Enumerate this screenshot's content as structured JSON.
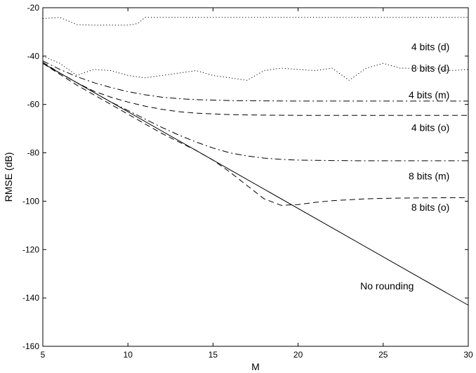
{
  "chart_data": {
    "type": "line",
    "title": "",
    "xlabel": "M",
    "ylabel": "RMSE (dB)",
    "xlim": [
      5,
      30
    ],
    "ylim": [
      -160,
      -20
    ],
    "xticks": [
      5,
      10,
      15,
      20,
      25,
      30
    ],
    "yticks": [
      -160,
      -140,
      -120,
      -100,
      -80,
      -60,
      -40,
      -20
    ],
    "grid": false,
    "legend": "none",
    "series": [
      {
        "name": "No rounding",
        "style": "solid",
        "x": [
          5,
          30
        ],
        "y": [
          -43,
          -143
        ],
        "label_at": [
          26.8,
          -136.5
        ]
      },
      {
        "name": "4 bits (d)",
        "style": "dotted",
        "x": [
          5,
          6,
          7,
          8,
          9,
          10,
          10.6,
          11,
          12,
          14,
          16,
          18,
          20,
          22,
          24,
          26,
          28,
          30
        ],
        "y": [
          -24.5,
          -24,
          -27,
          -27.2,
          -27.2,
          -27.2,
          -26.5,
          -24,
          -24,
          -24,
          -24,
          -24,
          -24,
          -24,
          -24,
          -24,
          -24,
          -24
        ],
        "label_at": [
          28.9,
          -37.5
        ]
      },
      {
        "name": "8 bits (d)",
        "style": "dotted",
        "x": [
          5,
          6,
          7,
          8,
          9,
          10,
          11,
          12,
          13,
          14,
          15,
          16,
          17,
          18,
          19,
          20,
          21,
          22,
          23,
          24,
          25,
          26,
          27,
          28,
          29,
          30
        ],
        "y": [
          -40,
          -43,
          -48,
          -45.5,
          -46,
          -48,
          -49,
          -48,
          -47,
          -46,
          -48,
          -49,
          -50,
          -46,
          -45,
          -45.5,
          -46,
          -45,
          -50,
          -45,
          -43,
          -45,
          -45,
          -45,
          -46,
          -45.5
        ],
        "label_at": [
          28.9,
          -46.5
        ]
      },
      {
        "name": "4 bits (m)",
        "style": "dashdot",
        "x": [
          5,
          6,
          7,
          8,
          9,
          10,
          11,
          12,
          13,
          14,
          16,
          18,
          20,
          22,
          24,
          26,
          28,
          30
        ],
        "y": [
          -42,
          -45.5,
          -48.5,
          -51,
          -53,
          -54.7,
          -56,
          -57,
          -57.6,
          -58,
          -58.4,
          -58.5,
          -58.6,
          -58.6,
          -58.6,
          -58.6,
          -58.6,
          -58.6
        ],
        "label_at": [
          28.9,
          -57.5
        ]
      },
      {
        "name": "4 bits (o)",
        "style": "dashed",
        "x": [
          5,
          6,
          7,
          8,
          9,
          10,
          11,
          12,
          13,
          14,
          16,
          18,
          20,
          22,
          24,
          26,
          28,
          30
        ],
        "y": [
          -42.5,
          -47,
          -51,
          -54.5,
          -57,
          -59,
          -60.7,
          -62,
          -63,
          -63.6,
          -64.2,
          -64.4,
          -64.5,
          -64.5,
          -64.5,
          -64.5,
          -64.5,
          -64.5
        ],
        "label_at": [
          28.9,
          -71
        ]
      },
      {
        "name": "8 bits (m)",
        "style": "dashdot",
        "x": [
          5,
          6,
          7,
          8,
          9,
          10,
          11,
          12,
          13,
          14,
          15,
          16,
          17,
          18,
          19,
          20,
          21,
          22,
          24,
          26,
          28,
          30
        ],
        "y": [
          -43,
          -47,
          -51,
          -55,
          -59,
          -62.5,
          -66,
          -69.5,
          -72.7,
          -75.5,
          -78,
          -80,
          -81.3,
          -82.2,
          -82.7,
          -83,
          -83.1,
          -83.2,
          -83.3,
          -83.3,
          -83.3,
          -83.3
        ],
        "label_at": [
          28.9,
          -91
        ]
      },
      {
        "name": "8 bits (o)",
        "style": "dashed",
        "x": [
          5,
          6,
          7,
          8,
          9,
          10,
          11,
          12,
          13,
          14,
          15,
          16,
          17,
          18,
          19,
          20,
          21,
          22,
          24,
          26,
          28,
          30
        ],
        "y": [
          -43,
          -47.5,
          -52,
          -56,
          -60,
          -64,
          -68,
          -72,
          -75.5,
          -79,
          -83,
          -88,
          -93.5,
          -99,
          -101.7,
          -101.4,
          -100.5,
          -99.8,
          -99,
          -98.7,
          -98.6,
          -98.5
        ],
        "label_at": [
          28.9,
          -104
        ]
      }
    ]
  }
}
